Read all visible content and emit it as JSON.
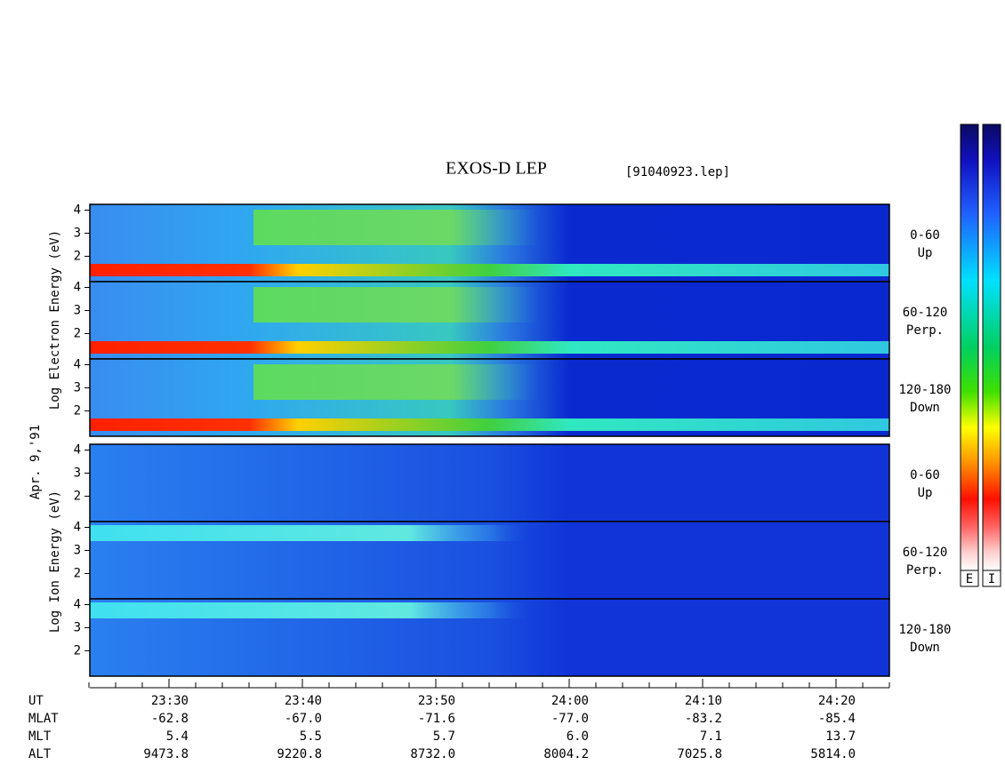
{
  "title": "EXOS-D LEP",
  "file_label": "[91040923.lep]",
  "date_label": "Apr. 9,'91",
  "electron": {
    "axis_label": "Log Electron Energy (eV)",
    "panels": [
      {
        "pitch": "0-60",
        "direction": "Up",
        "yticks": [
          2,
          3,
          4
        ],
        "ylim": [
          0.9,
          4.25
        ]
      },
      {
        "pitch": "60-120",
        "direction": "Perp.",
        "yticks": [
          2,
          3,
          4
        ],
        "ylim": [
          0.9,
          4.25
        ]
      },
      {
        "pitch": "120-180",
        "direction": "Down",
        "yticks": [
          2,
          3,
          4
        ],
        "ylim": [
          0.9,
          4.25
        ]
      }
    ]
  },
  "ion": {
    "axis_label": "Log Ion Energy (eV)",
    "panels": [
      {
        "pitch": "0-60",
        "direction": "Up",
        "yticks": [
          2,
          3,
          4
        ],
        "ylim": [
          0.9,
          4.25
        ]
      },
      {
        "pitch": "60-120",
        "direction": "Perp.",
        "yticks": [
          2,
          3,
          4
        ],
        "ylim": [
          0.9,
          4.25
        ]
      },
      {
        "pitch": "120-180",
        "direction": "Down",
        "yticks": [
          2,
          3,
          4
        ],
        "ylim": [
          0.9,
          4.25
        ]
      }
    ]
  },
  "time_axis": {
    "row_labels": [
      "UT",
      "MLAT",
      "MLT",
      "ALT"
    ],
    "columns": [
      [
        "23:30",
        "-62.8",
        "5.4",
        "9473.8"
      ],
      [
        "23:40",
        "-67.0",
        "5.5",
        "9220.8"
      ],
      [
        "23:50",
        "-71.6",
        "5.7",
        "8732.0"
      ],
      [
        "24:00",
        "-77.0",
        "6.0",
        "8004.2"
      ],
      [
        "24:10",
        "-83.2",
        "7.1",
        "7025.8"
      ],
      [
        "24:20",
        "-85.4",
        "13.7",
        "5814.0"
      ]
    ]
  },
  "colorbar_labels": [
    "E",
    "I"
  ]
}
